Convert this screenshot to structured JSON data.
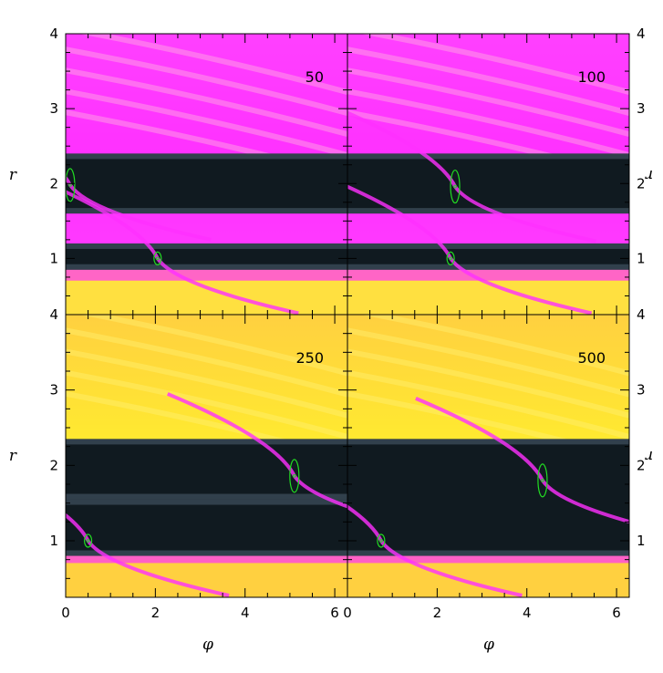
{
  "chart_data": {
    "type": "heatmap",
    "layout": "2x2 panel grid, shared axes",
    "xlabel": "φ",
    "ylabel": "r",
    "xlim": [
      0,
      6.283
    ],
    "ylim": [
      0.25,
      4
    ],
    "x_ticks": [
      0,
      2,
      4,
      6
    ],
    "x_tick_labels": [
      "0",
      "2",
      "4",
      "6"
    ],
    "y_ticks": [
      1,
      2,
      3,
      4
    ],
    "y_tick_labels": [
      "1",
      "2",
      "3",
      "4"
    ],
    "colormap": [
      "#101a20",
      "#3a4a58",
      "#8a6aa8",
      "#ff30ff",
      "#ff70c0",
      "#ffb070",
      "#ffea30"
    ],
    "marker_color": "#22dd22",
    "panels": [
      {
        "label": "50",
        "planets": [
          {
            "phi": 0.1,
            "r": 1.98,
            "size": "large"
          },
          {
            "phi": 2.05,
            "r": 1.0,
            "size": "small"
          }
        ],
        "gaps": [
          [
            0.85,
            1.2
          ],
          [
            1.6,
            2.4
          ]
        ],
        "inner_disc_color": "#ffe040",
        "outer_disc_color": "#ff40ff"
      },
      {
        "label": "100",
        "planets": [
          {
            "phi": 2.4,
            "r": 1.96,
            "size": "large"
          },
          {
            "phi": 2.3,
            "r": 1.0,
            "size": "small"
          }
        ],
        "gaps": [
          [
            0.85,
            1.2
          ],
          [
            1.6,
            2.4
          ]
        ],
        "inner_disc_color": "#ffe040",
        "outer_disc_color": "#ff40ff"
      },
      {
        "label": "250",
        "planets": [
          {
            "phi": 5.1,
            "r": 1.86,
            "size": "large"
          },
          {
            "phi": 0.5,
            "r": 1.0,
            "size": "small"
          }
        ],
        "gaps": [
          [
            0.8,
            1.55
          ],
          [
            1.55,
            2.35
          ]
        ],
        "inner_disc_color": "#ffd040",
        "outer_disc_color": "#ffd040"
      },
      {
        "label": "500",
        "planets": [
          {
            "phi": 4.35,
            "r": 1.8,
            "size": "large"
          },
          {
            "phi": 0.75,
            "r": 1.0,
            "size": "small"
          }
        ],
        "gaps": [
          [
            0.8,
            2.35
          ]
        ],
        "inner_disc_color": "#ffd040",
        "outer_disc_color": "#ffd040"
      }
    ]
  }
}
